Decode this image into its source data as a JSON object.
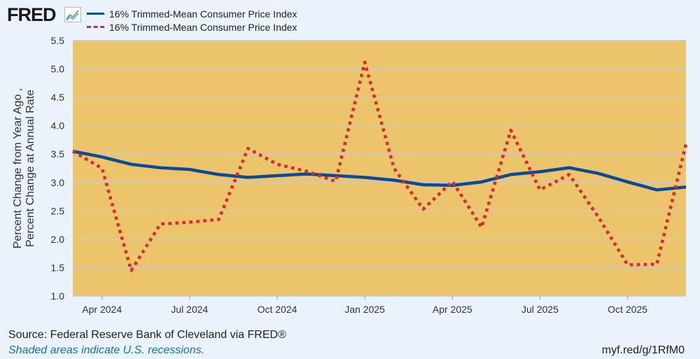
{
  "header": {
    "logo": "FRED",
    "legend": [
      "16% Trimmed-Mean Consumer Price Index",
      "16% Trimmed-Mean Consumer Price Index"
    ]
  },
  "footer": {
    "source": "Source: Federal Reserve Bank of Cleveland via FRED®",
    "recessions": "Shaded areas indicate U.S. recessions.",
    "url": "myf.red/g/1RfM0"
  },
  "colors": {
    "plot_bg": "#ebc46c",
    "blue": "#0b4a94",
    "red": "#dc2a2a",
    "grid": "#c8c8c8"
  },
  "chart_data": {
    "type": "line",
    "title": "",
    "ylabel": "Percent Change from Year Ago , Percent Change at Annual Rate",
    "ylim": [
      1.0,
      5.5
    ],
    "yticks": [
      "1.0",
      "1.5",
      "2.0",
      "2.5",
      "3.0",
      "3.5",
      "4.0",
      "4.5",
      "5.0",
      "5.5"
    ],
    "xticks": [
      {
        "label": "Apr 2024",
        "index": 1
      },
      {
        "label": "Jul 2024",
        "index": 4
      },
      {
        "label": "Oct 2024",
        "index": 7
      },
      {
        "label": "Jan 2025",
        "index": 10
      },
      {
        "label": "Apr 2025",
        "index": 13
      },
      {
        "label": "Jul 2025",
        "index": 16
      },
      {
        "label": "Oct 2025",
        "index": 19
      }
    ],
    "x": [
      "2024-03",
      "2024-04",
      "2024-05",
      "2024-06",
      "2024-07",
      "2024-08",
      "2024-09",
      "2024-10",
      "2024-11",
      "2024-12",
      "2025-01",
      "2025-02",
      "2025-03",
      "2025-04",
      "2025-05",
      "2025-06",
      "2025-07",
      "2025-08",
      "2025-09",
      "2025-10",
      "2025-11",
      "2025-12"
    ],
    "series": [
      {
        "name": "16% Trimmed-Mean Consumer Price Index (Percent Change from Year Ago)",
        "style": "solid",
        "values": [
          3.55,
          3.45,
          3.32,
          3.26,
          3.23,
          3.14,
          3.09,
          3.12,
          3.15,
          3.12,
          3.09,
          3.04,
          2.96,
          2.95,
          3.01,
          3.14,
          3.19,
          3.26,
          3.16,
          3.01,
          2.87,
          2.92
        ]
      },
      {
        "name": "16% Trimmed-Mean Consumer Price Index (Percent Change at Annual Rate)",
        "style": "dotted",
        "values": [
          3.55,
          3.25,
          1.45,
          2.27,
          2.3,
          2.35,
          3.6,
          3.32,
          3.2,
          3.02,
          5.12,
          3.25,
          2.53,
          3.02,
          2.21,
          3.92,
          2.87,
          3.14,
          2.39,
          1.55,
          1.56,
          3.68
        ]
      }
    ]
  }
}
